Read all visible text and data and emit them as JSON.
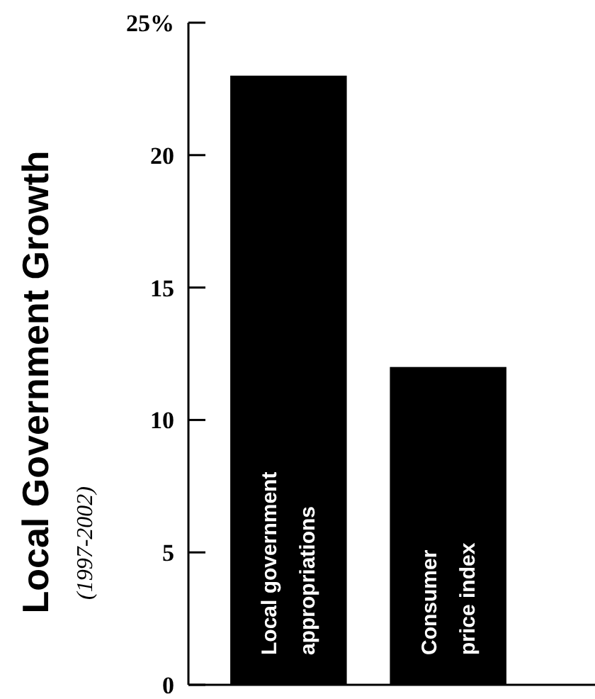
{
  "chart_data": {
    "type": "bar",
    "title": "Local Government Growth",
    "subtitle": "(1997-2002)",
    "categories": [
      "Local government appropriations",
      "Consumer price index"
    ],
    "values": [
      23,
      12
    ],
    "color": "#000000",
    "ylim": [
      0,
      25
    ],
    "yticks": [
      0,
      5,
      10,
      15,
      {
        "value": 20,
        "label": "20"
      },
      {
        "value": 25,
        "label": "25%"
      }
    ],
    "grid": false
  }
}
